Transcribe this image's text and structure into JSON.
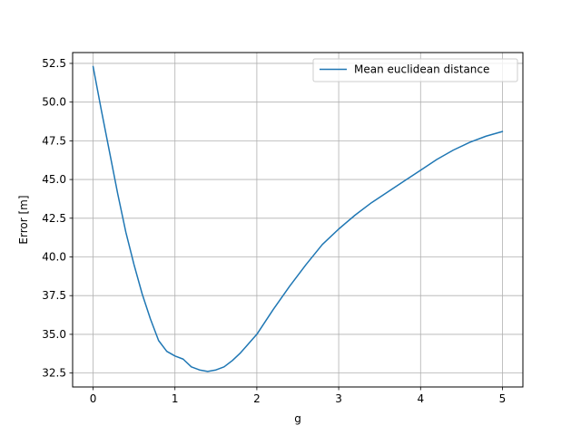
{
  "chart_data": {
    "type": "line",
    "title": "",
    "xlabel": "g",
    "ylabel": "Error [m]",
    "xlim": [
      -0.25,
      5.25
    ],
    "ylim": [
      31.6,
      53.2
    ],
    "xticks": [
      0,
      1,
      2,
      3,
      4,
      5
    ],
    "xtick_labels": [
      "0",
      "1",
      "2",
      "3",
      "4",
      "5"
    ],
    "yticks": [
      32.5,
      35.0,
      37.5,
      40.0,
      42.5,
      45.0,
      47.5,
      50.0,
      52.5
    ],
    "ytick_labels": [
      "32.5",
      "35.0",
      "37.5",
      "40.0",
      "42.5",
      "45.0",
      "47.5",
      "50.0",
      "52.5"
    ],
    "grid": true,
    "legend_position": "top-right",
    "series": [
      {
        "name": "Mean euclidean distance",
        "color": "#1f77b4",
        "x": [
          0,
          0.1,
          0.2,
          0.3,
          0.4,
          0.5,
          0.6,
          0.7,
          0.8,
          0.9,
          1.0,
          1.1,
          1.2,
          1.3,
          1.4,
          1.5,
          1.6,
          1.7,
          1.8,
          1.9,
          2.0,
          2.2,
          2.4,
          2.6,
          2.8,
          3.0,
          3.2,
          3.4,
          3.6,
          3.8,
          4.0,
          4.2,
          4.4,
          4.6,
          4.8,
          5.0
        ],
        "y": [
          52.3,
          49.5,
          46.8,
          44.1,
          41.6,
          39.5,
          37.6,
          36.0,
          34.6,
          33.9,
          33.6,
          33.4,
          32.9,
          32.7,
          32.6,
          32.7,
          32.9,
          33.3,
          33.8,
          34.4,
          35.0,
          36.6,
          38.1,
          39.5,
          40.8,
          41.8,
          42.7,
          43.5,
          44.2,
          44.9,
          45.6,
          46.3,
          46.9,
          47.4,
          47.8,
          48.1
        ]
      }
    ]
  }
}
